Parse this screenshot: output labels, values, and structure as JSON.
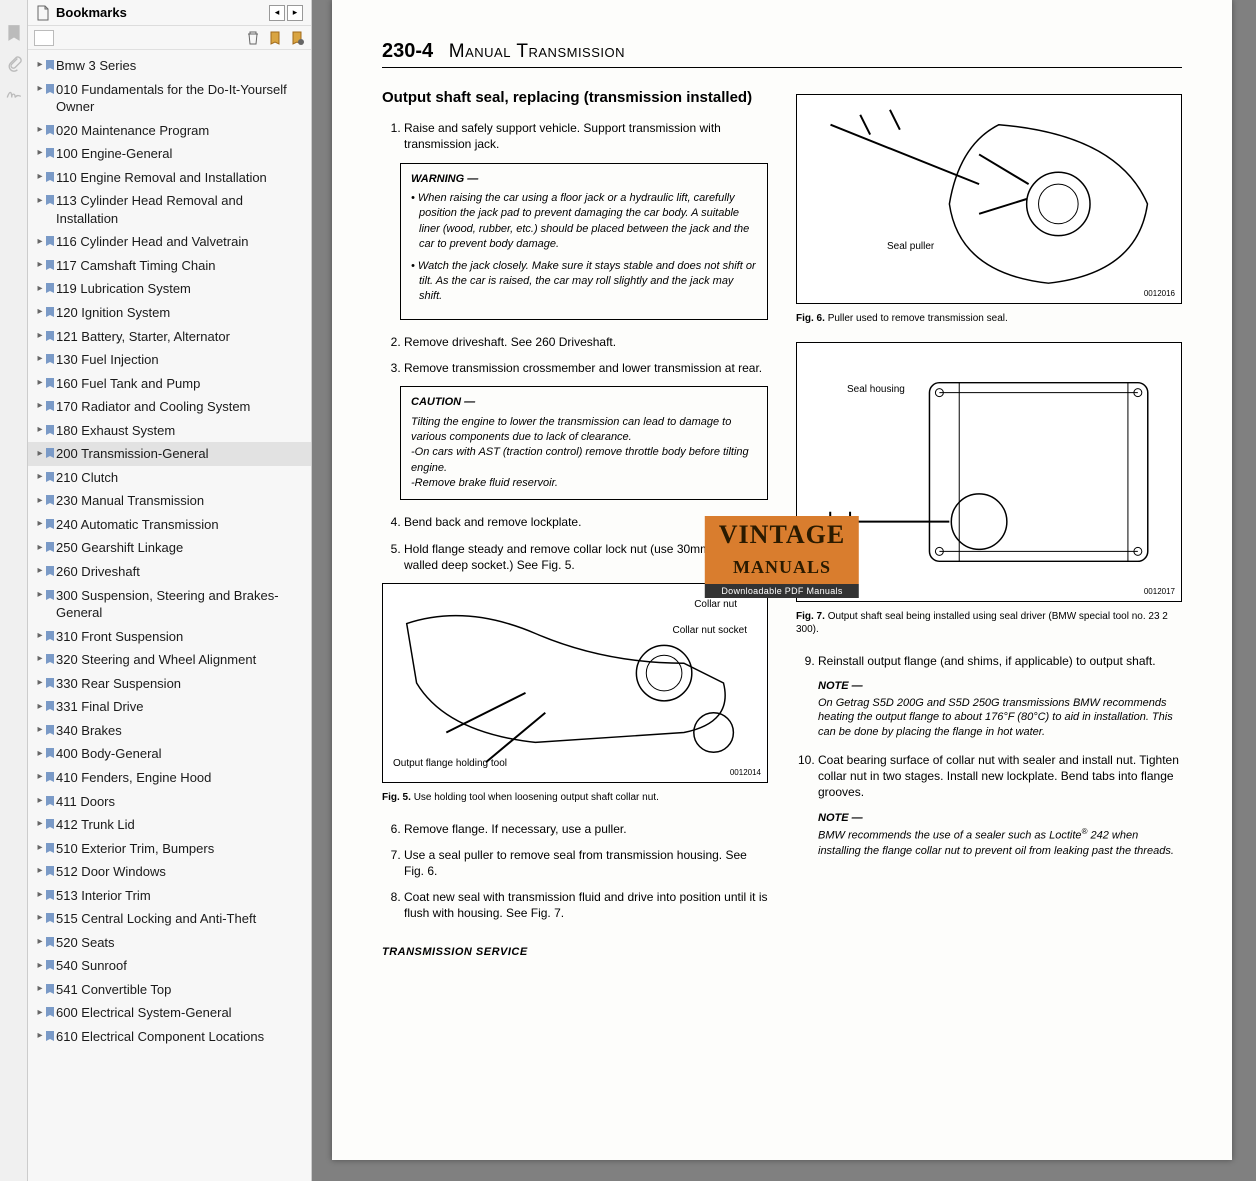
{
  "sidebar": {
    "title": "Bookmarks",
    "items": [
      {
        "label": "Bmw 3 Series"
      },
      {
        "label": "010 Fundamentals for the Do-It-Yourself Owner"
      },
      {
        "label": "020 Maintenance Program"
      },
      {
        "label": "100 Engine-General"
      },
      {
        "label": "110 Engine Removal and Installation"
      },
      {
        "label": "113 Cylinder Head Removal and Installation"
      },
      {
        "label": "116 Cylinder Head and Valvetrain"
      },
      {
        "label": "117 Camshaft Timing Chain"
      },
      {
        "label": "119 Lubrication System"
      },
      {
        "label": "120 Ignition System"
      },
      {
        "label": "121 Battery, Starter, Alternator"
      },
      {
        "label": "130 Fuel Injection"
      },
      {
        "label": "160 Fuel Tank and Pump"
      },
      {
        "label": "170 Radiator and Cooling System"
      },
      {
        "label": "180 Exhaust System"
      },
      {
        "label": "200 Transmission-General",
        "selected": true
      },
      {
        "label": "210 Clutch"
      },
      {
        "label": "230 Manual Transmission"
      },
      {
        "label": "240 Automatic Transmission"
      },
      {
        "label": "250 Gearshift Linkage"
      },
      {
        "label": "260 Driveshaft"
      },
      {
        "label": "300 Suspension, Steering and Brakes-General"
      },
      {
        "label": "310 Front Suspension"
      },
      {
        "label": "320 Steering and Wheel Alignment"
      },
      {
        "label": "330 Rear Suspension"
      },
      {
        "label": "331 Final Drive"
      },
      {
        "label": "340 Brakes"
      },
      {
        "label": "400 Body-General"
      },
      {
        "label": "410 Fenders, Engine Hood"
      },
      {
        "label": "411 Doors"
      },
      {
        "label": "412 Trunk Lid"
      },
      {
        "label": "510 Exterior Trim, Bumpers"
      },
      {
        "label": "512 Door Windows"
      },
      {
        "label": "513 Interior Trim"
      },
      {
        "label": "515 Central Locking and Anti-Theft"
      },
      {
        "label": "520 Seats"
      },
      {
        "label": "540 Sunroof"
      },
      {
        "label": "541 Convertible Top"
      },
      {
        "label": "600 Electrical System-General"
      },
      {
        "label": "610 Electrical Component Locations"
      }
    ]
  },
  "page": {
    "number": "230-4",
    "title": "Manual Transmission",
    "section_title": "Output shaft seal, replacing (transmission installed)",
    "left_steps": {
      "s1": "Raise and safely support vehicle. Support transmission with transmission jack.",
      "warning_title": "WARNING —",
      "warning_b1": "When raising the car using a floor jack or a hydraulic lift, carefully position the jack pad to prevent damaging the car body. A suitable liner (wood, rubber, etc.) should be placed between the jack and the car to prevent body damage.",
      "warning_b2": "Watch the jack closely. Make sure it stays stable and does not shift or tilt. As the car is raised, the car may roll slightly and the jack may shift.",
      "s2": "Remove driveshaft. See 260 Driveshaft.",
      "s3": "Remove transmission crossmember and lower transmission at rear.",
      "caution_title": "CAUTION —",
      "caution_body": "Tilting the engine to lower the transmission can lead to damage to various components due to lack of clearance.\n-On cars with AST (traction control) remove throttle body before tilting engine.\n-Remove brake fluid reservoir.",
      "s4": "Bend back and remove lockplate.",
      "s5": "Hold flange steady and remove collar lock nut (use 30mm thin-walled deep socket.) See Fig. 5.",
      "fig5_labels": {
        "a": "Collar nut",
        "b": "Collar nut socket",
        "c": "Output flange holding tool",
        "num": "0012014"
      },
      "fig5_cap_b": "Fig. 5.",
      "fig5_cap": "Use holding tool when loosening output shaft collar nut.",
      "s6": "Remove flange. If necessary, use a puller.",
      "s7": "Use a seal puller to remove seal from transmission housing. See Fig. 6.",
      "s8": "Coat new seal with transmission fluid and drive into position until it is flush with housing. See Fig. 7."
    },
    "right": {
      "fig6_label": "Seal puller",
      "fig6_num": "0012016",
      "fig6_cap_b": "Fig. 6.",
      "fig6_cap": "Puller used to remove transmission seal.",
      "fig7_label": "Seal housing",
      "fig7_num": "0012017",
      "fig7_cap_b": "Fig. 7.",
      "fig7_cap": "Output shaft seal being installed using seal driver (BMW special tool no. 23 2 300).",
      "s9": "Reinstall output flange (and shims, if applicable) to output shaft.",
      "note1_title": "NOTE —",
      "note1_body": "On Getrag S5D 200G and S5D 250G transmissions BMW recommends heating the output flange to about 176°F (80°C) to aid in installation. This can be done by placing the flange in hot water.",
      "s10": "Coat bearing surface of collar nut with sealer and install nut. Tighten collar nut in two stages. Install new lockplate. Bend tabs into flange grooves.",
      "note2_title": "NOTE —",
      "note2_body_a": "BMW recommends the use of a sealer such as Loctite",
      "note2_body_b": " 242 when installing the flange collar nut to prevent oil from leaking past the threads."
    },
    "footer": "TRANSMISSION SERVICE",
    "watermark": {
      "line1": "VINTAGE",
      "line2": "MANUALS",
      "sub": "Downloadable PDF Manuals"
    }
  }
}
